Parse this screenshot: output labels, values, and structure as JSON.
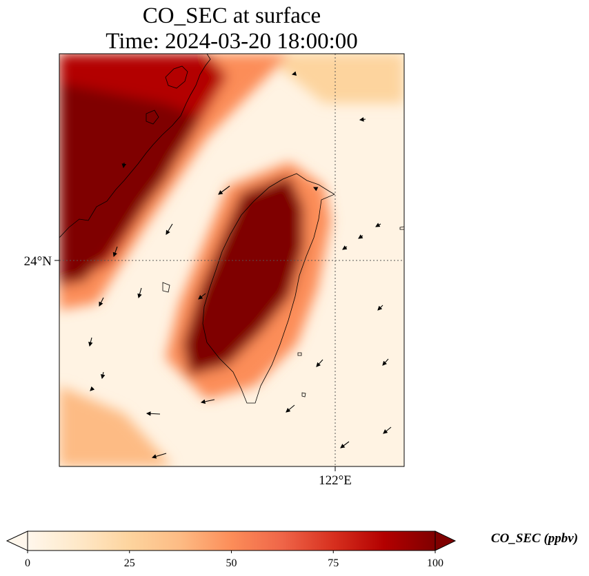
{
  "title_line1": "CO_SEC at surface",
  "title_line2": "Time: 2024-03-20 18:00:00",
  "map": {
    "lat_label": "24°N",
    "lon_label": "122°E",
    "gridlines": "dotted"
  },
  "colorbar": {
    "label": "CO_SEC (ppbv)",
    "ticks": [
      "0",
      "25",
      "50",
      "75",
      "100"
    ],
    "range": [
      0,
      100
    ],
    "extend": "both",
    "colormap": "OrRd",
    "colors": [
      "#fff7ec",
      "#fee8c8",
      "#fdd49e",
      "#fdbb84",
      "#fc8d59",
      "#ef6548",
      "#d7301f",
      "#b30000",
      "#7f0000"
    ]
  }
}
